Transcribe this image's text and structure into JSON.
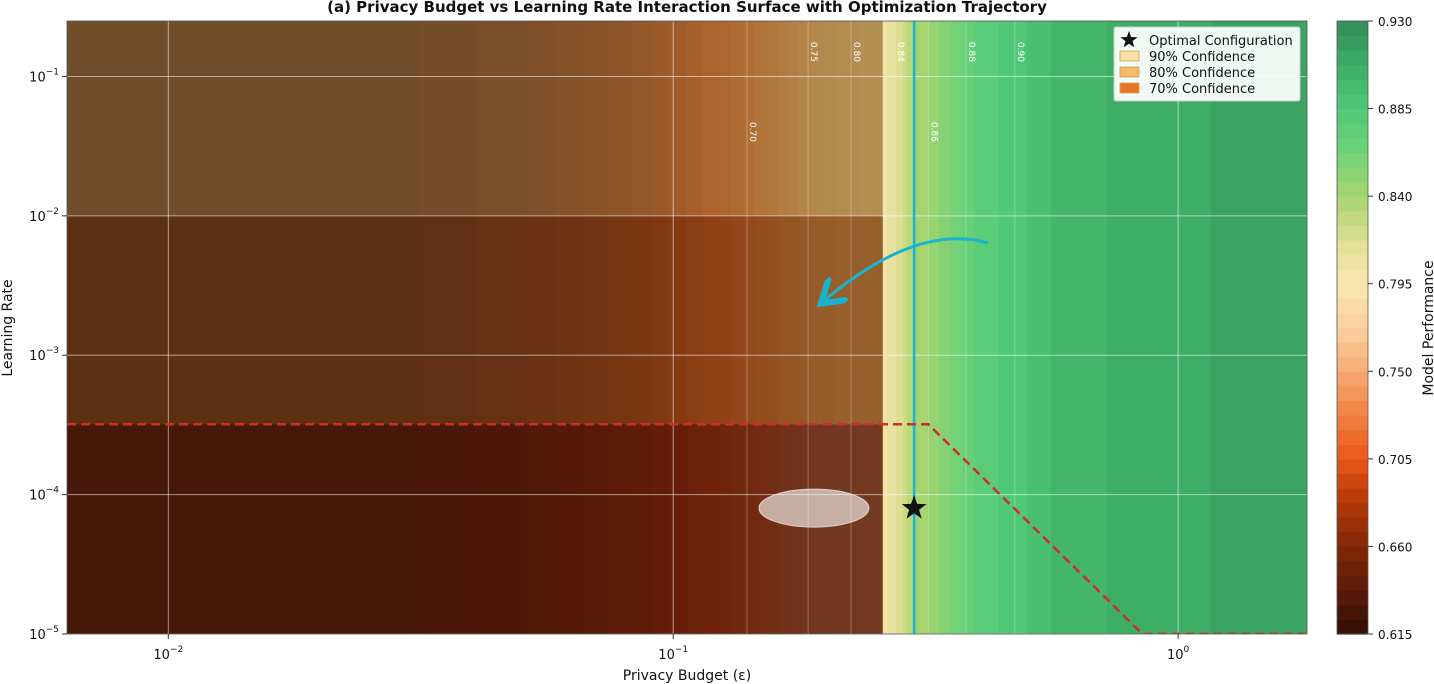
{
  "chart_data": {
    "type": "heatmap",
    "title": "(a) Privacy Budget vs Learning Rate Interaction Surface with Optimization Trajectory",
    "xlabel": "Privacy Budget (ε)",
    "ylabel": "Learning Rate",
    "x_scale": "log",
    "y_scale": "log",
    "xlim": [
      0.0063,
      1.8
    ],
    "ylim": [
      1e-05,
      0.25
    ],
    "x_ticks": [
      {
        "value": 0.01,
        "base": "10",
        "exp": "−2"
      },
      {
        "value": 0.1,
        "base": "10",
        "exp": "−1"
      },
      {
        "value": 1,
        "base": "10",
        "exp": "0"
      }
    ],
    "y_ticks": [
      {
        "value": 0.1,
        "base": "10",
        "exp": "−1"
      },
      {
        "value": 0.01,
        "base": "10",
        "exp": "−2"
      },
      {
        "value": 0.001,
        "base": "10",
        "exp": "−3"
      },
      {
        "value": 0.0001,
        "base": "10",
        "exp": "−4"
      },
      {
        "value": 1e-05,
        "base": "10",
        "exp": "−5"
      }
    ],
    "grid": true,
    "colorbar": {
      "label": "Model Performance",
      "range": [
        0.615,
        0.93
      ],
      "ticks": [
        "0.930",
        "0.885",
        "0.840",
        "0.795",
        "0.750",
        "0.705",
        "0.660",
        "0.615"
      ]
    },
    "performance_profile": {
      "epsilon": [
        0.0063,
        0.03,
        0.05,
        0.08,
        0.12,
        0.16,
        0.2,
        0.26,
        0.3,
        0.4,
        0.6,
        1.0,
        1.8
      ],
      "performance": [
        0.622,
        0.625,
        0.64,
        0.668,
        0.705,
        0.745,
        0.78,
        0.8,
        0.835,
        0.875,
        0.9,
        0.91,
        0.915
      ]
    },
    "contour_labels": [
      {
        "label": "0.70",
        "epsilon": 0.14,
        "lr": 0.04
      },
      {
        "label": "0.75",
        "epsilon": 0.185,
        "lr": 0.15
      },
      {
        "label": "0.80",
        "epsilon": 0.225,
        "lr": 0.15
      },
      {
        "label": "0.84",
        "epsilon": 0.275,
        "lr": 0.15
      },
      {
        "label": "0.86",
        "epsilon": 0.32,
        "lr": 0.04
      },
      {
        "label": "0.88",
        "epsilon": 0.38,
        "lr": 0.15
      },
      {
        "label": "0.90",
        "epsilon": 0.475,
        "lr": 0.15
      }
    ],
    "confidence_regions": [
      {
        "name": "90% Confidence",
        "color": "#f7e0a6",
        "lr_range": [
          0.01,
          0.25
        ],
        "epsilon_max": 0.26
      },
      {
        "name": "80% Confidence",
        "color": "#f5b96a",
        "lr_range": [
          0.00032,
          0.01
        ],
        "epsilon_max": 0.26
      },
      {
        "name": "70% Confidence",
        "color": "#e8742a",
        "lr_range": [
          1e-05,
          0.00032
        ],
        "epsilon_max": 0.26
      }
    ],
    "optimal_configuration": {
      "name": "Optimal Configuration",
      "epsilon": 0.3,
      "lr": 8e-05
    },
    "optimal_epsilon_line": 0.3,
    "boundary_dashed": [
      [
        0.0063,
        0.00032
      ],
      [
        0.32,
        0.00032
      ],
      [
        0.85,
        1e-05
      ],
      [
        1.8,
        1e-05
      ]
    ],
    "trajectory_arrow": {
      "from": [
        0.42,
        0.0064
      ],
      "to": [
        0.2,
        0.0025
      ]
    },
    "highlight_ellipse": {
      "epsilon": 0.19,
      "lr": 8e-05
    },
    "legend_position": "top-right"
  }
}
